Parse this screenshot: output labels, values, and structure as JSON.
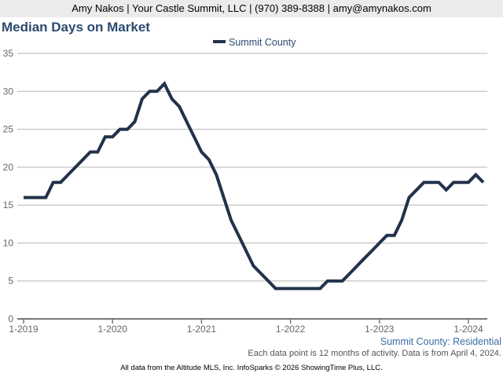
{
  "header": "Amy Nakos | Your Castle Summit, LLC | (970) 389-8388 | amy@amynakos.com",
  "chart_data": {
    "type": "line",
    "title": "Median Days on Market",
    "legend": [
      "Summit County"
    ],
    "legend_position": "top-center",
    "xlabel": "",
    "ylabel": "",
    "ylim": [
      0,
      35
    ],
    "yticks": [
      0,
      5,
      10,
      15,
      20,
      25,
      30,
      35
    ],
    "xtick_labels": [
      "1-2019",
      "1-2020",
      "1-2021",
      "1-2022",
      "1-2023",
      "1-2024"
    ],
    "x_start": "1-2019",
    "x_end": "3-2024",
    "x_interval": "monthly",
    "grid": true,
    "series": [
      {
        "name": "Summit County",
        "color": "#22324a",
        "values": [
          16,
          16,
          16,
          16,
          18,
          18,
          19,
          20,
          21,
          22,
          22,
          24,
          24,
          25,
          25,
          26,
          29,
          30,
          30,
          31,
          29,
          28,
          26,
          24,
          22,
          21,
          19,
          16,
          13,
          11,
          9,
          7,
          6,
          5,
          4,
          4,
          4,
          4,
          4,
          4,
          4,
          5,
          5,
          5,
          6,
          7,
          8,
          9,
          10,
          11,
          11,
          13,
          16,
          17,
          18,
          18,
          18,
          17,
          18,
          18,
          18,
          19,
          18
        ]
      }
    ]
  },
  "subtitle": "Summit County: Residential",
  "note": "Each data point is 12 months of activity. Data is from April 4, 2024.",
  "footer": "All data from the Altitude MLS, Inc. InfoSparks © 2026 ShowingTime Plus, LLC."
}
